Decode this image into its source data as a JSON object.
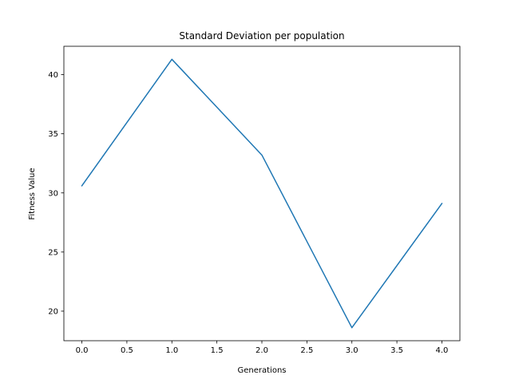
{
  "chart_data": {
    "type": "line",
    "title": "Standard Deviation per population",
    "xlabel": "Generations",
    "ylabel": "Fitness Value",
    "x": [
      0,
      1,
      2,
      3,
      4
    ],
    "series": [
      {
        "values": [
          30.6,
          41.3,
          33.2,
          18.6,
          29.1
        ],
        "color": "#1f77b4"
      }
    ],
    "xlim": [
      -0.2,
      4.2
    ],
    "ylim": [
      17.5,
      42.4
    ],
    "xticks": [
      0.0,
      0.5,
      1.0,
      1.5,
      2.0,
      2.5,
      3.0,
      3.5,
      4.0
    ],
    "xtick_labels": [
      "0.0",
      "0.5",
      "1.0",
      "1.5",
      "2.0",
      "2.5",
      "3.0",
      "3.5",
      "4.0"
    ],
    "yticks": [
      20,
      25,
      30,
      35,
      40
    ],
    "ytick_labels": [
      "20",
      "25",
      "30",
      "35",
      "40"
    ],
    "grid": false,
    "legend": "none"
  }
}
